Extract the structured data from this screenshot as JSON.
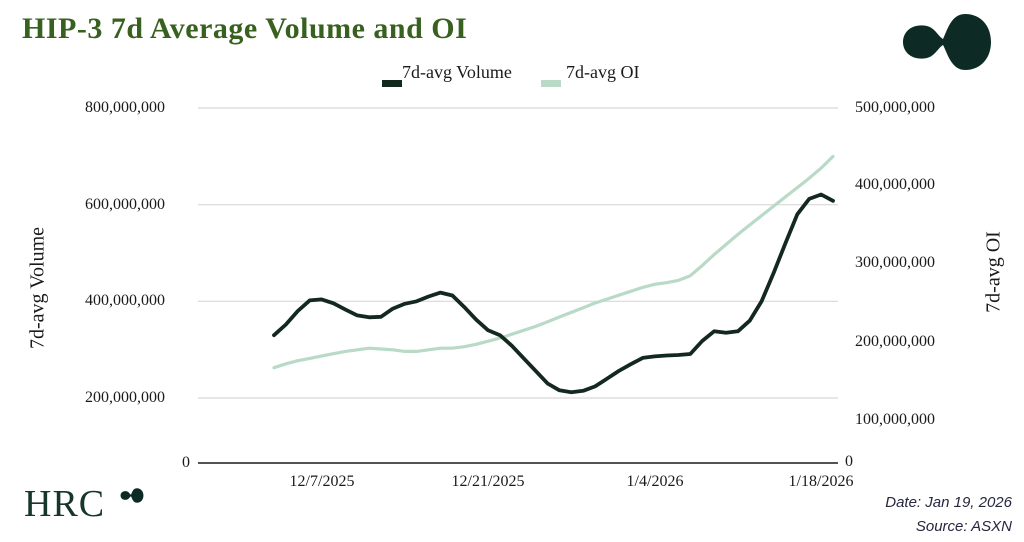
{
  "title": "HIP-3 7d Average Volume and OI",
  "legend": [
    {
      "label": "7d-avg Volume",
      "color": "#13291f"
    },
    {
      "label": "7d-avg OI",
      "color": "#b9dac7"
    }
  ],
  "left_axis": {
    "title": "7d-avg Volume",
    "ticks": [
      "800,000,000",
      "600,000,000",
      "400,000,000",
      "200,000,000"
    ],
    "zero": "0"
  },
  "right_axis": {
    "title": "7d-avg OI",
    "ticks": [
      "500,000,000",
      "400,000,000",
      "300,000,000",
      "200,000,000",
      "100,000,000"
    ],
    "zero": "0"
  },
  "x_axis": {
    "labels": [
      "12/7/2025",
      "12/21/2025",
      "1/4/2026",
      "1/18/2026"
    ]
  },
  "footer": {
    "brand": "HRC",
    "date": "Date: Jan 19, 2026",
    "source": "Source: ASXN"
  },
  "colors": {
    "gridline": "#d8d8d8",
    "axis_line": "#1a1a1a",
    "title_green": "#38611f",
    "brand_green": "#17362c",
    "logo_dark": "#0d2b24"
  },
  "chart_data": {
    "type": "line",
    "title": "HIP-3 7d Average Volume and OI",
    "x": [
      "12/3/2025",
      "12/4/2025",
      "12/5/2025",
      "12/6/2025",
      "12/7/2025",
      "12/8/2025",
      "12/9/2025",
      "12/10/2025",
      "12/11/2025",
      "12/12/2025",
      "12/13/2025",
      "12/14/2025",
      "12/15/2025",
      "12/16/2025",
      "12/17/2025",
      "12/18/2025",
      "12/19/2025",
      "12/20/2025",
      "12/21/2025",
      "12/22/2025",
      "12/23/2025",
      "12/24/2025",
      "12/25/2025",
      "12/26/2025",
      "12/27/2025",
      "12/28/2025",
      "12/29/2025",
      "12/30/2025",
      "12/31/2025",
      "1/1/2026",
      "1/2/2026",
      "1/3/2026",
      "1/4/2026",
      "1/5/2026",
      "1/6/2026",
      "1/7/2026",
      "1/8/2026",
      "1/9/2026",
      "1/10/2026",
      "1/11/2026",
      "1/12/2026",
      "1/13/2026",
      "1/14/2026",
      "1/15/2026",
      "1/16/2026",
      "1/17/2026",
      "1/18/2026",
      "1/19/2026"
    ],
    "series": [
      {
        "name": "7d-avg Volume",
        "axis": "left",
        "color": "#13291f",
        "values": [
          330000000,
          352000000,
          380000000,
          402000000,
          404000000,
          396000000,
          383000000,
          371000000,
          367000000,
          368000000,
          385000000,
          395000000,
          400000000,
          410000000,
          418000000,
          412000000,
          388000000,
          362000000,
          340000000,
          330000000,
          308000000,
          282000000,
          256000000,
          230000000,
          216000000,
          212000000,
          215000000,
          224000000,
          240000000,
          256000000,
          270000000,
          283000000,
          286000000,
          288000000,
          289000000,
          291000000,
          318000000,
          338000000,
          335000000,
          338000000,
          360000000,
          400000000,
          458000000,
          520000000,
          580000000,
          612000000,
          621000000,
          608000000
        ]
      },
      {
        "name": "7d-avg OI",
        "axis": "right",
        "color": "#b9dac7",
        "values": [
          167000000,
          172000000,
          176000000,
          179000000,
          182000000,
          185000000,
          188000000,
          190000000,
          192000000,
          191000000,
          190000000,
          188000000,
          188000000,
          190000000,
          192000000,
          192000000,
          194000000,
          197000000,
          201000000,
          205000000,
          210000000,
          215000000,
          220000000,
          226000000,
          232000000,
          238000000,
          244000000,
          250000000,
          255000000,
          260000000,
          265000000,
          270000000,
          274000000,
          276000000,
          279000000,
          285000000,
          298000000,
          312000000,
          325000000,
          338000000,
          350000000,
          362000000,
          374000000,
          386000000,
          398000000,
          410000000,
          423000000,
          438000000
        ]
      }
    ],
    "left_ylim": [
      0,
      800000000
    ],
    "right_ylim": [
      0,
      500000000
    ],
    "grid": "horizontal",
    "legend_position": "top-center"
  }
}
